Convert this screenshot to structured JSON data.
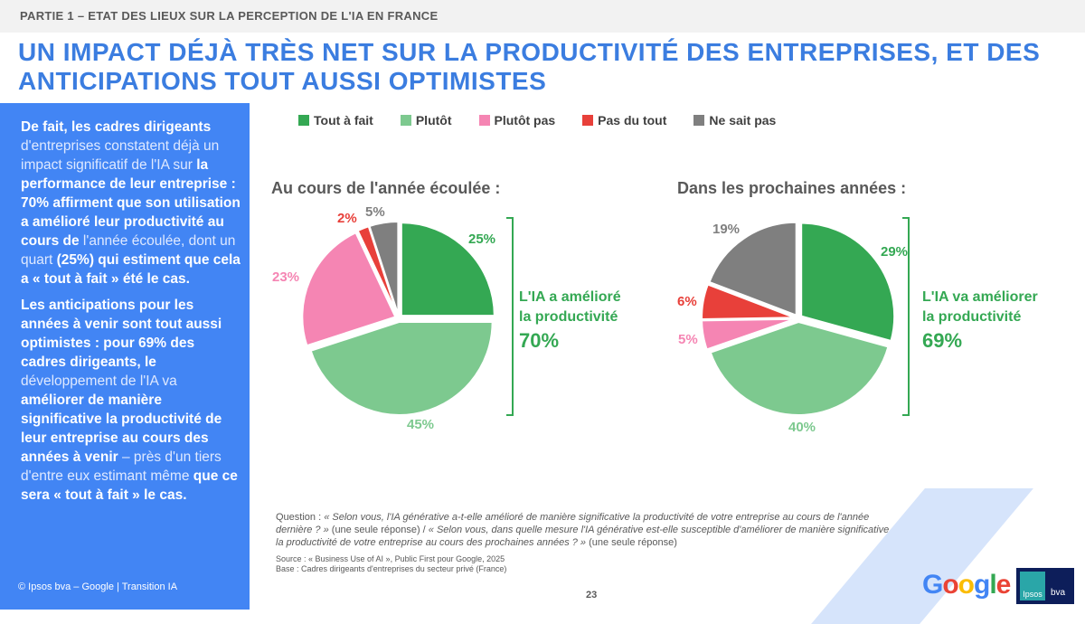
{
  "header": {
    "section": "PARTIE 1 – ETAT DES LIEUX SUR LA PERCEPTION DE L'IA EN FRANCE",
    "title": "UN IMPACT DÉJÀ TRÈS NET SUR LA PRODUCTIVITÉ DES ENTREPRISES, ET DES ANTICIPATIONS TOUT AUSSI OPTIMISTES"
  },
  "panel": {
    "p1": [
      "De fait, les cadres dirigeants",
      " d'entreprises constatent déjà un impact significatif de l'IA sur ",
      "la performance de leur entreprise : 70% affirment que son utilisation a amélioré leur productivité au cours de",
      " l'année écoulée, dont un quart ",
      "(25%) qui estiment que cela a « tout à fait » été le cas."
    ],
    "p2": [
      "Les anticipations pour les années à venir sont tout aussi optimistes : pour 69% des cadres dirigeants, le",
      " développement de l'IA va ",
      "améliorer de manière significative la productivité de leur entreprise au cours des années à venir",
      " – près d'un tiers d'entre eux estimant même ",
      "que ce sera « tout à fait » le cas."
    ],
    "copyright": "© Ipsos bva – Google | Transition IA"
  },
  "legend": [
    {
      "label": "Tout à fait",
      "color": "#34a853"
    },
    {
      "label": "Plutôt",
      "color": "#7dc98f"
    },
    {
      "label": "Plutôt pas",
      "color": "#f585b3"
    },
    {
      "label": "Pas du tout",
      "color": "#e8403a"
    },
    {
      "label": "Ne sait pas",
      "color": "#7f7f7f"
    }
  ],
  "chart_data": [
    {
      "type": "pie",
      "title": "Au cours de l'année écoulée :",
      "categories": [
        "Tout à fait",
        "Plutôt",
        "Plutôt pas",
        "Pas du tout",
        "Ne sait pas"
      ],
      "values": [
        25,
        45,
        23,
        2,
        5
      ],
      "value_labels": [
        "25%",
        "45%",
        "23%",
        "2%",
        "5%"
      ],
      "annotation": {
        "text1": "L'IA a amélioré",
        "text2": "la productivité",
        "total": "70%"
      }
    },
    {
      "type": "pie",
      "title": "Dans les prochaines années :",
      "categories": [
        "Tout à fait",
        "Plutôt",
        "Plutôt pas",
        "Pas du tout",
        "Ne sait pas"
      ],
      "values": [
        29,
        40,
        5,
        6,
        19
      ],
      "value_labels": [
        "29%",
        "40%",
        "5%",
        "6%",
        "19%"
      ],
      "annotation": {
        "text1": "L'IA va améliorer",
        "text2": "la productivité",
        "total": "69%"
      }
    }
  ],
  "footer": {
    "question_label": "Question : ",
    "q1": "« Selon vous, l'IA générative a-t-elle amélioré de manière significative la productivité de votre entreprise au cours de l'année dernière ? »",
    "q1_suffix": " (une seule réponse) / ",
    "q2": "« Selon vous, dans quelle mesure l'IA générative est-elle susceptible d'améliorer de manière significative la productivité de votre entreprise au cours des prochaines années ? »",
    "q2_suffix": " (une seule réponse)",
    "source": "Source : « Business Use of AI », Public First pour Google, 2025",
    "base": "Base : Cadres dirigeants d'entreprises du secteur privé (France)",
    "page": "23",
    "google": "Google",
    "ipsos": "Ipsos",
    "bva": "bva"
  }
}
